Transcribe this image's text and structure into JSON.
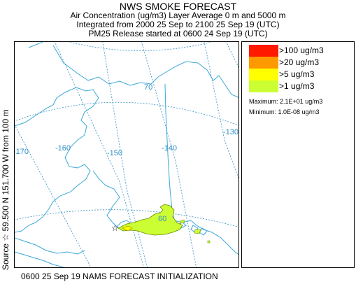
{
  "header": {
    "title": "NWS SMOKE FORECAST",
    "line1": "Air Concentration (ug/m3) Layer Average    0 m and  5000 m",
    "line2": "Integrated from 2000 25 Sep to 2100 25 Sep 19 (UTC)",
    "line3": "PM25 Release started at 0600 24 Sep 19 (UTC)"
  },
  "side_label": "Source ☆ 59.500  N 151.700  W     from  100 m",
  "footer": "0600 25 Sep 19 NAMS FORECAST INITIALIZATION",
  "map": {
    "longitude_labels": [
      "-170",
      "-160",
      "-150",
      "-140",
      "-130"
    ],
    "latitude_labels": [
      "70",
      "60"
    ],
    "graticule_color": "#2f8fc4",
    "coast_color": "#3aa8d8",
    "source_marker": "star-icon"
  },
  "legend": {
    "items": [
      {
        "label": ">100 ug/m3",
        "color": "#ff1a00"
      },
      {
        "label": ">20 ug/m3",
        "color": "#ff9900"
      },
      {
        "label": ">5 ug/m3",
        "color": "#ffff00"
      },
      {
        "label": ">1 ug/m3",
        "color": "#ccff33"
      }
    ],
    "maximum": "Maximum: 2.1E+01 ug/m3",
    "minimum": "Minimum: 1.0E-08 ug/m3"
  }
}
